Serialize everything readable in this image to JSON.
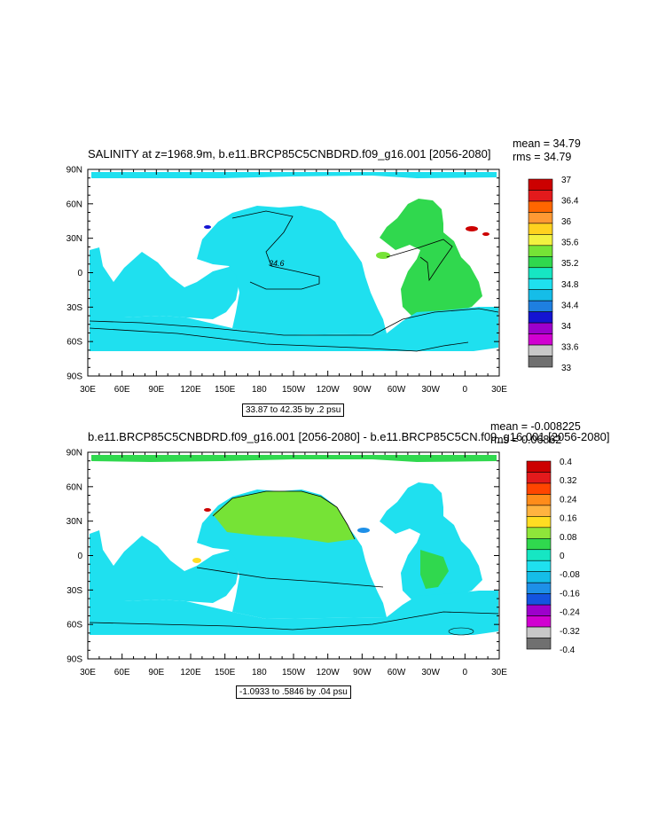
{
  "panel1": {
    "title": "SALINITY at z=1968.9m, b.e11.BRCP85C5CNBDRD.f09_g16.001 [2056-2080]",
    "mean": "mean = 34.79",
    "rms": "rms = 34.79",
    "subtitle": "33.87 to 42.35 by .2 psu",
    "contour_label": "34.6",
    "colorbar_labels": [
      "37",
      "36.4",
      "36",
      "35.6",
      "35.2",
      "34.8",
      "34.4",
      "34",
      "33.6",
      "33"
    ],
    "colorbar_colors": [
      "#cc0000",
      "#e31a1c",
      "#ff6600",
      "#ff9933",
      "#ffd21f",
      "#f2f240",
      "#76e336",
      "#30d84e",
      "#16e6c3",
      "#1fe0ef",
      "#15bde8",
      "#1e7fe0",
      "#1414d2",
      "#9d00cc",
      "#d100d1",
      "#c8c8c8",
      "#707070"
    ]
  },
  "panel2": {
    "title": "b.e11.BRCP85C5CNBDRD.f09_g16.001 [2056-2080] - b.e11.BRCP85C5CN.f09_g16.001 [2056-2080]",
    "mean": "mean = -0.008225",
    "rms": "rms = 0.06862",
    "subtitle": "-1.0933 to .5846 by .04 psu",
    "colorbar_labels": [
      "0.4",
      "0.32",
      "0.24",
      "0.16",
      "0.08",
      "0",
      "-0.08",
      "-0.16",
      "-0.24",
      "-0.32",
      "-0.4"
    ],
    "colorbar_colors": [
      "#cc0000",
      "#e31a1c",
      "#ff4500",
      "#ff8c1a",
      "#ffb340",
      "#ffdd22",
      "#8fe63a",
      "#30d84e",
      "#16e6c3",
      "#1fe0ef",
      "#15bde8",
      "#1e90e8",
      "#1454e0",
      "#9d00cc",
      "#d100d1",
      "#c8c8c8",
      "#707070"
    ]
  },
  "axes": {
    "lat_labels": [
      "90N",
      "60N",
      "30N",
      "0",
      "30S",
      "60S",
      "90S"
    ],
    "lon_labels": [
      "30E",
      "60E",
      "90E",
      "120E",
      "150E",
      "180",
      "150W",
      "120W",
      "90W",
      "60W",
      "30W",
      "0",
      "30E"
    ]
  },
  "colors": {
    "p1_ocean": "#1fe0ef",
    "p1_atlantic": "#30d84e",
    "p2_ocean": "#1fe0ef",
    "p2_positive": "#76e336",
    "p2_zero": "#30d84e"
  }
}
